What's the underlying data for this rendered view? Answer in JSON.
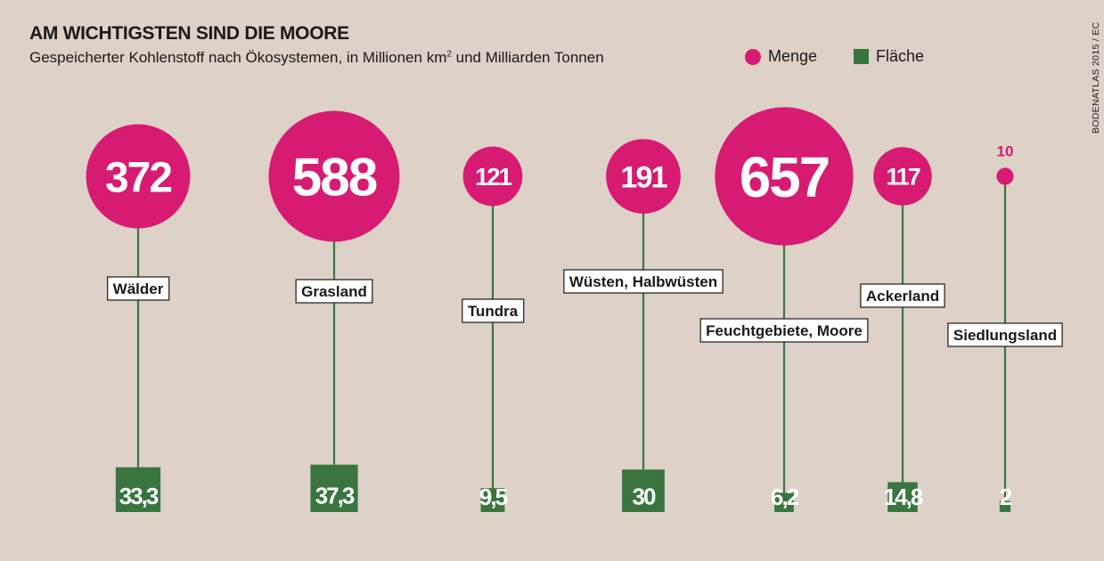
{
  "title": "AM WICHTIGSTEN SIND DIE MOORE",
  "subtitle_main": "Gespeicherter Kohlenstoff nach Ökosystemen, in Millionen km",
  "subtitle_sup": "2",
  "subtitle_rest": " und Milliarden Tonnen",
  "legend": {
    "menge": "Menge",
    "flaeche": "Fläche"
  },
  "source": "BODENATLAS 2015 / EC",
  "colors": {
    "menge": "#d81b72",
    "flaeche": "#3a7540",
    "stem": "#3a7540",
    "background": "#ddd1c8"
  },
  "chart_data": {
    "type": "bar",
    "categories": [
      "Wälder",
      "Grasland",
      "Tundra",
      "Wüsten, Halbwüsten",
      "Feuchtgebiete, Moore",
      "Ackerland",
      "Siedlungsland"
    ],
    "series": [
      {
        "name": "Menge",
        "values": [
          372,
          588,
          121,
          191,
          657,
          117,
          10
        ],
        "labels": [
          "372",
          "588",
          "121",
          "191",
          "657",
          "117",
          "10"
        ]
      },
      {
        "name": "Fläche",
        "values": [
          33.3,
          37.3,
          9.5,
          30,
          6.2,
          14.8,
          2
        ],
        "labels": [
          "33,3",
          "37,3",
          "9,5",
          "30",
          "6,2",
          "14,8",
          "2"
        ]
      }
    ]
  }
}
